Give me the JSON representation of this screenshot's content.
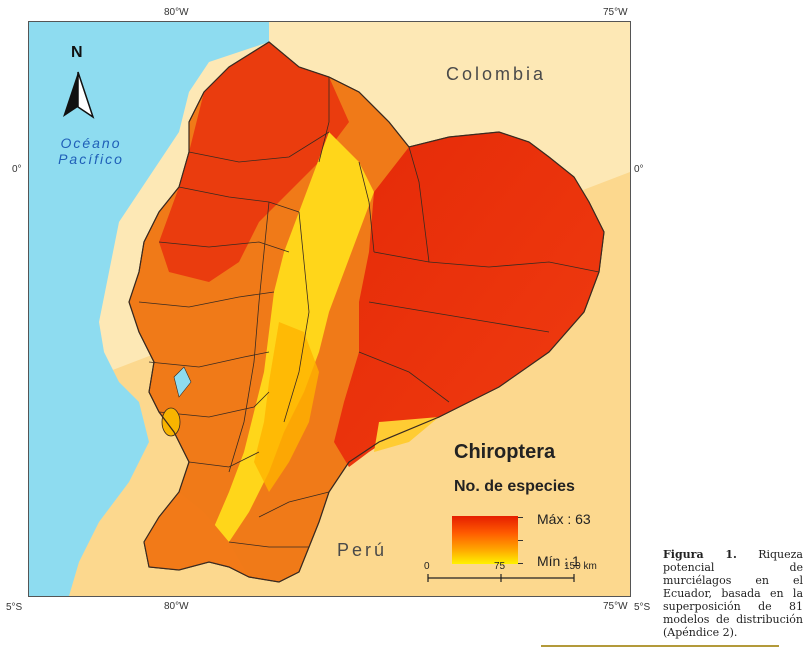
{
  "coordinates": {
    "top_left_lon": "80°W",
    "top_right_lon": "75°W",
    "bottom_left_lon": "80°W",
    "bottom_right_lon": "75°W",
    "left_equator_lat": "0°",
    "right_equator_lat": "0°",
    "left_south_lat": "5°S",
    "right_south_lat": "5°S"
  },
  "north_arrow": {
    "label": "N"
  },
  "labels": {
    "colombia": "Colombia",
    "peru": "Perú",
    "ocean_line1": "Océano",
    "ocean_line2": "Pacífico"
  },
  "legend": {
    "title": "Chiroptera",
    "subtitle": "No. de especies",
    "max_label": "Máx : 63",
    "min_label": "Mín : 1",
    "max_value": 63,
    "min_value": 1,
    "colors": [
      "#e51e00",
      "#ff5a00",
      "#ffa600",
      "#fff200"
    ]
  },
  "scale_bar": {
    "label_0": "0",
    "label_75": "75",
    "label_150": "150 km"
  },
  "caption": {
    "label": "Figura 1.",
    "text": "Riqueza potencial de murciélagos en el Ecuador, basada en la superposición de 81 modelos de distribución (Apéndice 2)."
  },
  "colors": {
    "ocean": "#8edcf0",
    "neighbor_land": "#fde8b5",
    "high_richness": "#e8280a",
    "mid_richness": "#ff9a00",
    "low_richness": "#ffe300",
    "border": "#3a2a20"
  }
}
